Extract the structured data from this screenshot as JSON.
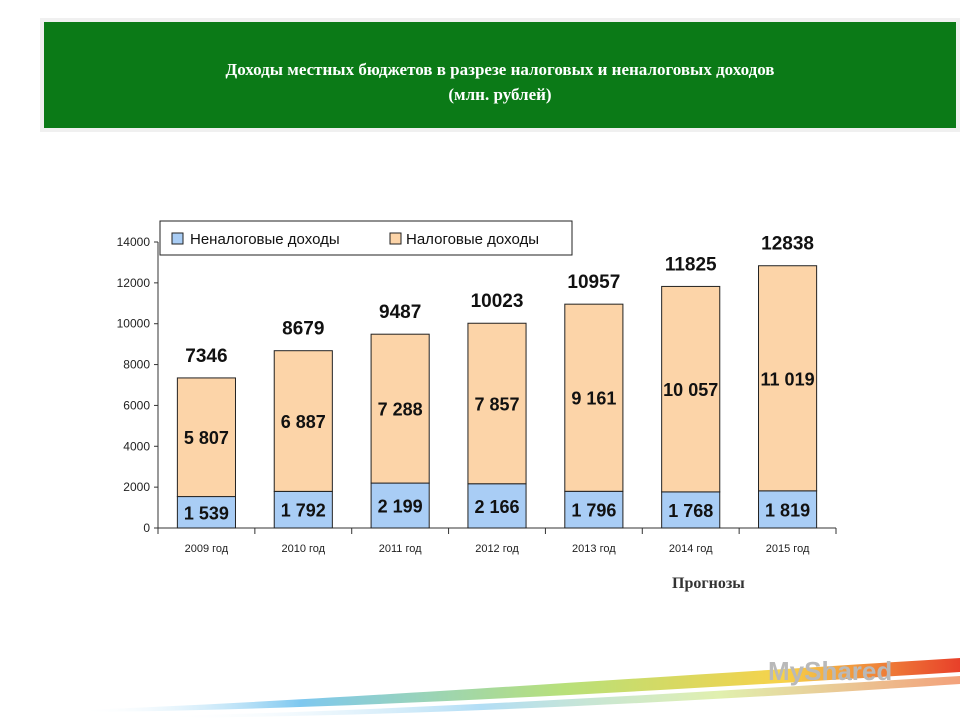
{
  "header": {
    "title_line1": "Доходы  местных бюджетов в разрезе налоговых и неналоговых доходов",
    "title_line2": "(млн. рублей)",
    "bg_color": "#0b7a17"
  },
  "chart_data": {
    "type": "bar",
    "stacked": true,
    "categories": [
      "2009 год",
      "2010 год",
      "2011 год",
      "2012 год",
      "2013 год",
      "2014 год",
      "2015 год"
    ],
    "series": [
      {
        "name": "Неналоговые доходы",
        "values": [
          1539,
          1792,
          2199,
          2166,
          1796,
          1768,
          1819
        ],
        "labels": [
          "1 539",
          "1 792",
          "2 199",
          "2 166",
          "1 796",
          "1 768",
          "1 819"
        ],
        "color": "#a9cdf5"
      },
      {
        "name": "Налоговые доходы",
        "values": [
          5807,
          6887,
          7288,
          7857,
          9161,
          10057,
          11019
        ],
        "labels": [
          "5 807",
          "6 887",
          "7 288",
          "7 857",
          "9 161",
          "10 057",
          "11 019"
        ],
        "color": "#fcd4a8"
      }
    ],
    "totals": [
      7346,
      8679,
      9487,
      10023,
      10957,
      11825,
      12838
    ],
    "total_labels": [
      "7346",
      "8679",
      "9487",
      "10023",
      "10957",
      "11825",
      "12838"
    ],
    "ylim": [
      0,
      14000
    ],
    "yticks": [
      0,
      2000,
      4000,
      6000,
      8000,
      10000,
      12000,
      14000
    ],
    "ytick_labels": [
      "0",
      "2000",
      "4000",
      "6000",
      "8000",
      "10000",
      "12000",
      "14000"
    ],
    "legend_position": "top-left",
    "grid": false
  },
  "footer": {
    "forecast_note": "Прогнозы",
    "logo_text": "MyShared"
  }
}
